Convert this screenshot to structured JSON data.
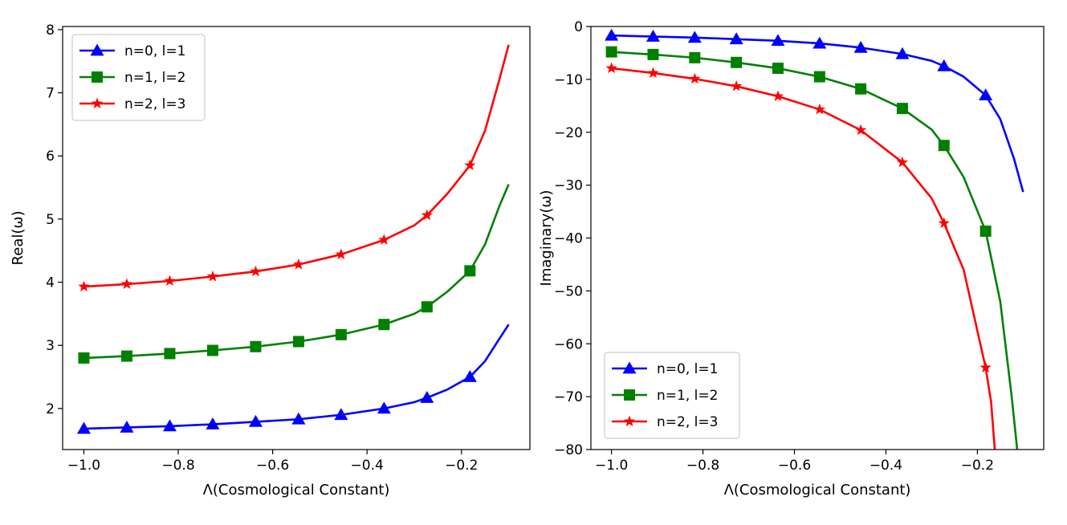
{
  "chart_data": [
    {
      "type": "line",
      "id": "left",
      "xlabel": "Λ(Cosmological Constant)",
      "ylabel": "Real(ω)",
      "xlim": [
        -1.045,
        -0.055
      ],
      "ylim": [
        1.35,
        8.05
      ],
      "xticks": [
        -1.0,
        -0.8,
        -0.6,
        -0.4,
        -0.2
      ],
      "xtick_labels": [
        "−1.0",
        "−0.8",
        "−0.6",
        "−0.4",
        "−0.2"
      ],
      "yticks": [
        2,
        3,
        4,
        5,
        6,
        7,
        8
      ],
      "ytick_labels": [
        "2",
        "3",
        "4",
        "5",
        "6",
        "7",
        "8"
      ],
      "legend": "top-left",
      "marker_x": [
        -1.0,
        -0.909,
        -0.818,
        -0.727,
        -0.636,
        -0.545,
        -0.455,
        -0.364,
        -0.273,
        -0.182
      ],
      "series": [
        {
          "name": "n=0, l=1",
          "color": "#0000ff",
          "marker": "triangle",
          "curve": [
            [
              -1.0,
              1.68
            ],
            [
              -0.909,
              1.7
            ],
            [
              -0.818,
              1.72
            ],
            [
              -0.727,
              1.75
            ],
            [
              -0.636,
              1.79
            ],
            [
              -0.545,
              1.83
            ],
            [
              -0.455,
              1.9
            ],
            [
              -0.364,
              2.0
            ],
            [
              -0.3,
              2.1
            ],
            [
              -0.273,
              2.17
            ],
            [
              -0.23,
              2.3
            ],
            [
              -0.182,
              2.5
            ],
            [
              -0.15,
              2.75
            ],
            [
              -0.12,
              3.1
            ],
            [
              -0.1,
              3.33
            ]
          ],
          "markers": [
            1.68,
            1.7,
            1.72,
            1.75,
            1.79,
            1.83,
            1.9,
            2.0,
            2.17,
            2.5
          ]
        },
        {
          "name": "n=1, l=2",
          "color": "#008000",
          "marker": "square",
          "curve": [
            [
              -1.0,
              2.8
            ],
            [
              -0.909,
              2.83
            ],
            [
              -0.818,
              2.87
            ],
            [
              -0.727,
              2.92
            ],
            [
              -0.636,
              2.98
            ],
            [
              -0.545,
              3.06
            ],
            [
              -0.455,
              3.17
            ],
            [
              -0.364,
              3.33
            ],
            [
              -0.3,
              3.5
            ],
            [
              -0.273,
              3.61
            ],
            [
              -0.23,
              3.85
            ],
            [
              -0.182,
              4.18
            ],
            [
              -0.15,
              4.6
            ],
            [
              -0.12,
              5.2
            ],
            [
              -0.1,
              5.55
            ]
          ],
          "markers": [
            2.8,
            2.83,
            2.87,
            2.92,
            2.98,
            3.06,
            3.17,
            3.33,
            3.61,
            4.18
          ]
        },
        {
          "name": "n=2, l=3",
          "color": "#ff0000",
          "marker": "star",
          "curve": [
            [
              -1.0,
              3.93
            ],
            [
              -0.909,
              3.97
            ],
            [
              -0.818,
              4.02
            ],
            [
              -0.727,
              4.09
            ],
            [
              -0.636,
              4.17
            ],
            [
              -0.545,
              4.28
            ],
            [
              -0.455,
              4.44
            ],
            [
              -0.364,
              4.67
            ],
            [
              -0.3,
              4.9
            ],
            [
              -0.273,
              5.06
            ],
            [
              -0.23,
              5.4
            ],
            [
              -0.182,
              5.85
            ],
            [
              -0.15,
              6.4
            ],
            [
              -0.12,
              7.2
            ],
            [
              -0.1,
              7.76
            ]
          ],
          "markers": [
            3.93,
            3.97,
            4.02,
            4.09,
            4.17,
            4.28,
            4.44,
            4.67,
            5.06,
            5.85
          ]
        }
      ]
    },
    {
      "type": "line",
      "id": "right",
      "xlabel": "Λ(Cosmological Constant)",
      "ylabel": "Imaginary(ω)",
      "xlim": [
        -1.045,
        -0.055
      ],
      "ylim": [
        -80,
        0
      ],
      "xticks": [
        -1.0,
        -0.8,
        -0.6,
        -0.4,
        -0.2
      ],
      "xtick_labels": [
        "−1.0",
        "−0.8",
        "−0.6",
        "−0.4",
        "−0.2"
      ],
      "yticks": [
        0,
        -10,
        -20,
        -30,
        -40,
        -50,
        -60,
        -70,
        -80
      ],
      "ytick_labels": [
        "0",
        "−10",
        "−20",
        "−30",
        "−40",
        "−50",
        "−60",
        "−70",
        "−80"
      ],
      "legend": "bottom-left",
      "marker_x": [
        -1.0,
        -0.909,
        -0.818,
        -0.727,
        -0.636,
        -0.545,
        -0.455,
        -0.364,
        -0.273,
        -0.182
      ],
      "series": [
        {
          "name": "n=0, l=1",
          "color": "#0000ff",
          "marker": "triangle",
          "curve": [
            [
              -1.0,
              -1.7
            ],
            [
              -0.909,
              -1.9
            ],
            [
              -0.818,
              -2.1
            ],
            [
              -0.727,
              -2.4
            ],
            [
              -0.636,
              -2.7
            ],
            [
              -0.545,
              -3.2
            ],
            [
              -0.455,
              -4.0
            ],
            [
              -0.364,
              -5.2
            ],
            [
              -0.3,
              -6.5
            ],
            [
              -0.273,
              -7.5
            ],
            [
              -0.23,
              -9.5
            ],
            [
              -0.182,
              -13.0
            ],
            [
              -0.15,
              -17.5
            ],
            [
              -0.12,
              -25.0
            ],
            [
              -0.1,
              -31.3
            ]
          ],
          "markers": [
            -1.7,
            -1.9,
            -2.1,
            -2.4,
            -2.7,
            -3.2,
            -4.0,
            -5.2,
            -7.5,
            -13.0
          ]
        },
        {
          "name": "n=1, l=2",
          "color": "#008000",
          "marker": "square",
          "curve": [
            [
              -1.0,
              -4.8
            ],
            [
              -0.909,
              -5.3
            ],
            [
              -0.818,
              -5.9
            ],
            [
              -0.727,
              -6.8
            ],
            [
              -0.636,
              -7.9
            ],
            [
              -0.545,
              -9.5
            ],
            [
              -0.455,
              -11.8
            ],
            [
              -0.364,
              -15.5
            ],
            [
              -0.3,
              -19.5
            ],
            [
              -0.273,
              -22.5
            ],
            [
              -0.23,
              -28.5
            ],
            [
              -0.182,
              -38.7
            ],
            [
              -0.15,
              -52.0
            ],
            [
              -0.125,
              -70.0
            ],
            [
              -0.113,
              -80.0
            ]
          ],
          "markers": [
            -4.8,
            -5.3,
            -5.9,
            -6.8,
            -7.9,
            -9.5,
            -11.8,
            -15.5,
            -22.5,
            -38.7
          ]
        },
        {
          "name": "n=2, l=3",
          "color": "#ff0000",
          "marker": "star",
          "curve": [
            [
              -1.0,
              -7.9
            ],
            [
              -0.909,
              -8.8
            ],
            [
              -0.818,
              -9.9
            ],
            [
              -0.727,
              -11.3
            ],
            [
              -0.636,
              -13.2
            ],
            [
              -0.545,
              -15.7
            ],
            [
              -0.455,
              -19.6
            ],
            [
              -0.364,
              -25.7
            ],
            [
              -0.3,
              -32.5
            ],
            [
              -0.273,
              -37.2
            ],
            [
              -0.23,
              -46.0
            ],
            [
              -0.182,
              -64.5
            ],
            [
              -0.17,
              -71.0
            ],
            [
              -0.162,
              -80.0
            ]
          ],
          "markers": [
            -7.9,
            -8.8,
            -9.9,
            -11.3,
            -13.2,
            -15.7,
            -19.6,
            -25.7,
            -37.2,
            -64.5
          ]
        }
      ]
    }
  ]
}
